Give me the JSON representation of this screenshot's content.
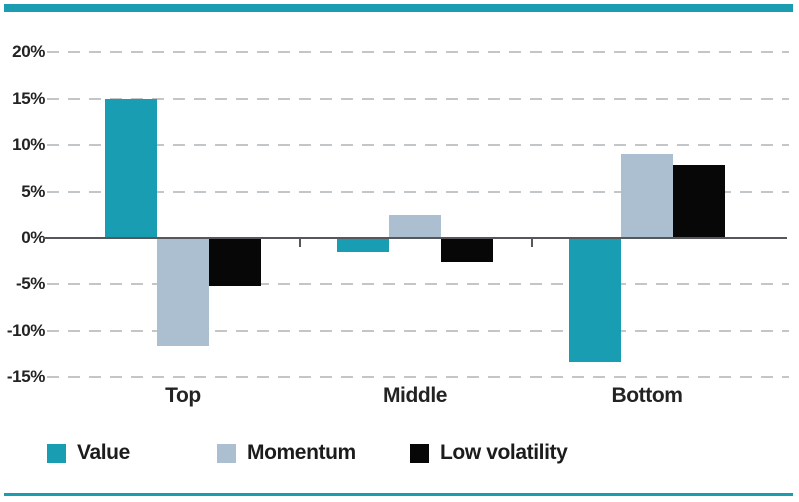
{
  "chart_data": {
    "type": "bar",
    "title": "",
    "xlabel": "",
    "ylabel": "",
    "categories": [
      "Top",
      "Middle",
      "Bottom"
    ],
    "series": [
      {
        "name": "Value",
        "color": "#189db3",
        "values": [
          15.0,
          -1.5,
          -13.4
        ]
      },
      {
        "name": "Momentum",
        "color": "#abbfd0",
        "values": [
          -11.6,
          2.5,
          9.0
        ]
      },
      {
        "name": "Low volatility",
        "color": "#070707",
        "values": [
          -5.2,
          -2.6,
          7.9
        ]
      }
    ],
    "ylim": [
      -15,
      20
    ],
    "yticks": [
      {
        "value": 20,
        "label": "20%"
      },
      {
        "value": 15,
        "label": "15%"
      },
      {
        "value": 10,
        "label": "10%"
      },
      {
        "value": 5,
        "label": "5%"
      },
      {
        "value": 0,
        "label": "0%"
      },
      {
        "value": -5,
        "label": "-5%"
      },
      {
        "value": -10,
        "label": "-10%"
      },
      {
        "value": -15,
        "label": "-15%"
      }
    ],
    "grid": "dashed-horizontal",
    "baseline": "solid-at-zero",
    "legend_position": "bottom"
  },
  "colors": {
    "accent_rule": "#1b9cb1",
    "gridline": "#c3c6c9",
    "axis": "#55575a",
    "text": "#232323"
  }
}
